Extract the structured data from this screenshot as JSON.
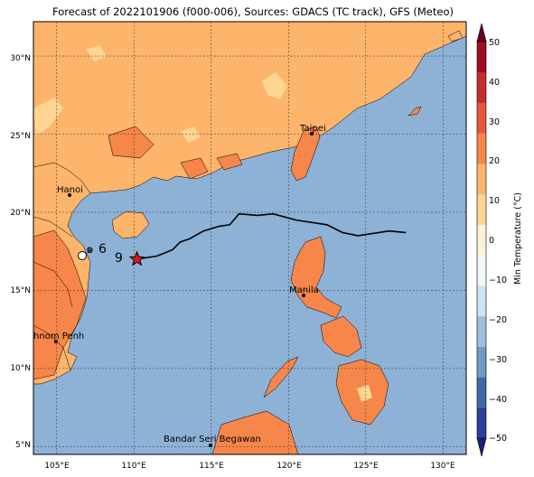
{
  "title": "Forecast of 2022101906 (f000-006), Sources: GDACS (TC track), GFS (Meteo)",
  "lon_ticks": [
    "105°E",
    "110°E",
    "115°E",
    "120°E",
    "125°E",
    "130°E"
  ],
  "lat_ticks": [
    "30°N",
    "25°N",
    "20°N",
    "15°N",
    "10°N",
    "5°N"
  ],
  "cities": [
    {
      "name": "Taipei"
    },
    {
      "name": "Hanoi"
    },
    {
      "name": "Manila"
    },
    {
      "name": "Phnom Penh"
    },
    {
      "name": "Bandar Seri Begawan"
    }
  ],
  "colorbar": {
    "label": "Min Temperature (°C)",
    "ticks": [
      "50",
      "40",
      "30",
      "20",
      "10",
      "0",
      "−10",
      "−20",
      "−30",
      "−40",
      "−50"
    ],
    "colors": [
      "#1f1f7a",
      "#2c3f9b",
      "#3e6aa8",
      "#6f9ac6",
      "#9dbedd",
      "#cfe2ef",
      "#f1f6f8",
      "#fbf1dc",
      "#fed593",
      "#fdb46b",
      "#f6864a",
      "#e3573a",
      "#c52e2b",
      "#9c0f26",
      "#6b001d"
    ]
  },
  "colors": {
    "ocean": "#8eb1d6",
    "land_warm": "#fdb46b",
    "land_mild": "#fed593",
    "land_hot": "#f6864a",
    "track": "#000000",
    "storm_marker": "#e0191b"
  },
  "map": {
    "lon_range": [
      103.5,
      131.5
    ],
    "lat_range": [
      4.5,
      32.2
    ],
    "grid": true
  },
  "track": [
    [
      110.2,
      17.0
    ],
    [
      111.5,
      17.2
    ],
    [
      112.5,
      17.6
    ],
    [
      113.0,
      18.1
    ],
    [
      113.6,
      18.3
    ],
    [
      114.5,
      18.8
    ],
    [
      115.5,
      19.1
    ],
    [
      116.2,
      19.2
    ],
    [
      116.8,
      19.9
    ],
    [
      118.0,
      19.8
    ],
    [
      119.0,
      19.9
    ],
    [
      120.5,
      19.5
    ],
    [
      122.5,
      19.2
    ],
    [
      123.5,
      18.7
    ],
    [
      124.5,
      18.5
    ],
    [
      126.5,
      18.8
    ],
    [
      127.6,
      18.7
    ]
  ],
  "storm_position": [
    110.2,
    17.0
  ]
}
